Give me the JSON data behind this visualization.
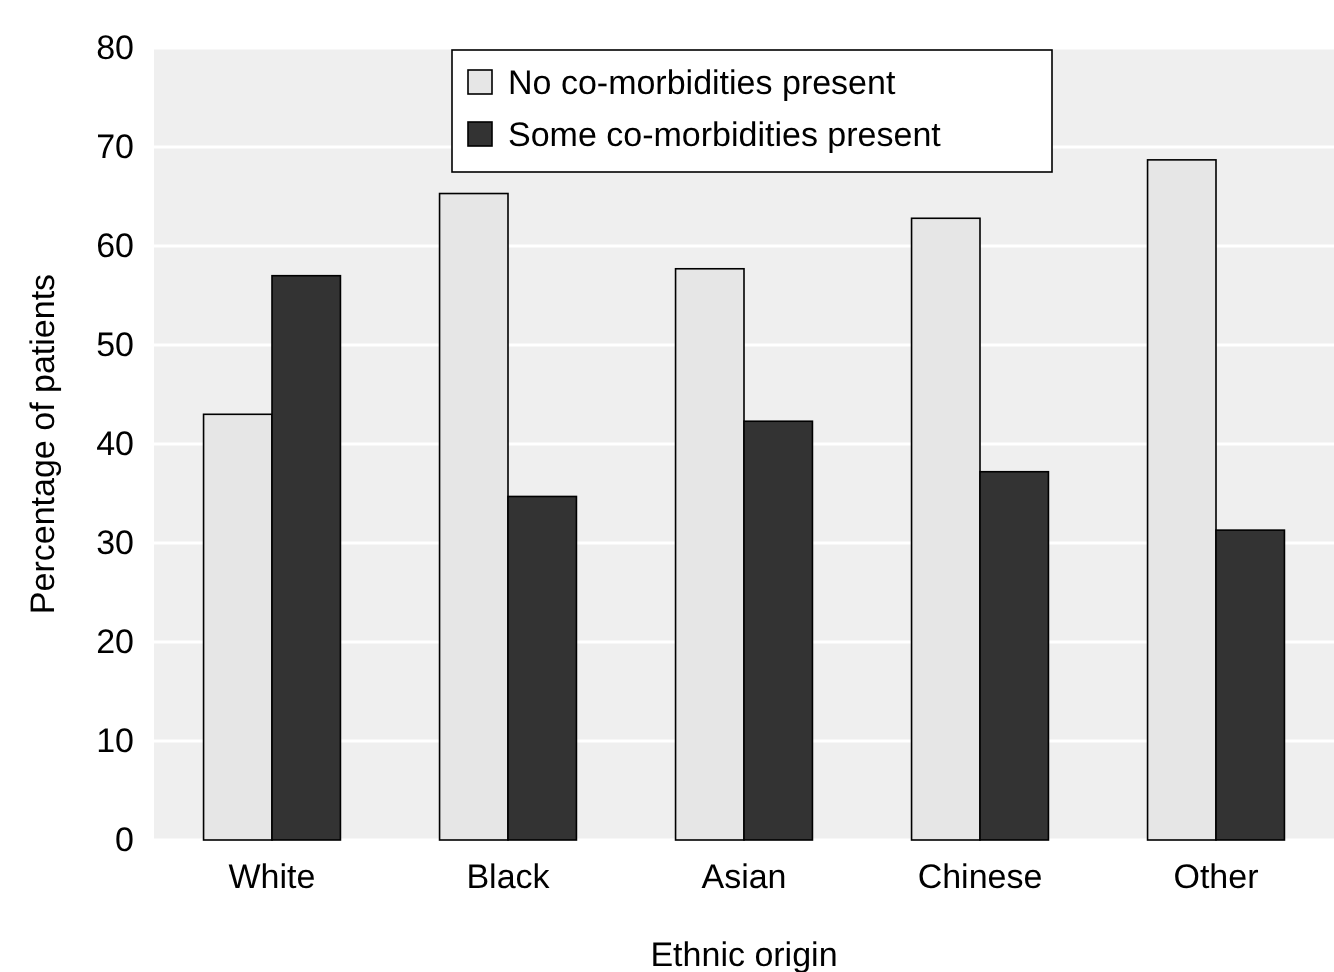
{
  "chart_data": {
    "type": "bar",
    "xlabel": "Ethnic origin",
    "ylabel": "Percentage of patients",
    "categories": [
      "White",
      "Black",
      "Asian",
      "Chinese",
      "Other"
    ],
    "series": [
      {
        "name": "No co-morbidities present",
        "color": "#e6e6e6",
        "values": [
          43,
          65.3,
          57.7,
          62.8,
          68.7
        ]
      },
      {
        "name": "Some co-morbidities present",
        "color": "#333333",
        "values": [
          57,
          34.7,
          42.3,
          37.2,
          31.3
        ]
      }
    ],
    "ylim": [
      0,
      80
    ],
    "yticks": [
      0,
      10,
      20,
      30,
      40,
      50,
      60,
      70,
      80
    ],
    "grid": "y",
    "legend": "top"
  }
}
